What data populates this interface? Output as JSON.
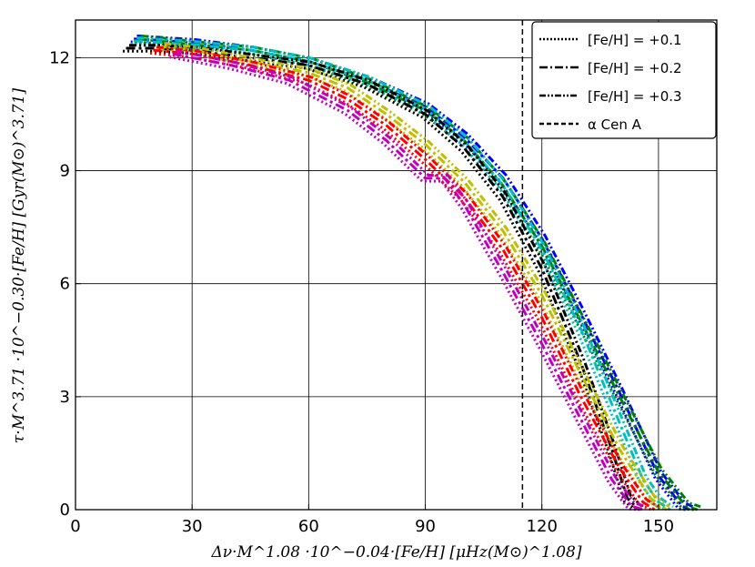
{
  "chart_data": {
    "type": "line",
    "xlabel": "Δν·M^1.08 ·10^−0.04·[Fe/H] [μHz(M⊙)^1.08]",
    "ylabel": "τ·M^3.71 ·10^−0.30·[Fe/H] [Gyr(M⊙)^3.71]",
    "xlim": [
      0,
      165
    ],
    "ylim": [
      0,
      13
    ],
    "xticks": [
      "0",
      "30",
      "60",
      "90",
      "120",
      "150"
    ],
    "yticks": [
      "0",
      "3",
      "6",
      "9",
      "12"
    ],
    "grid": true,
    "legend_position": "top-right",
    "legend": [
      {
        "label": "[Fe/H] = +0.1",
        "style": "dotted"
      },
      {
        "label": "[Fe/H] = +0.2",
        "style": "dashdot"
      },
      {
        "label": "[Fe/H] = +0.3",
        "style": "dashdotdot"
      },
      {
        "label": "α Cen A",
        "style": "dashed"
      }
    ],
    "reference_line": {
      "x": 115
    },
    "series": [
      {
        "color": "#0000ff",
        "x": [
          15,
          30,
          45,
          60,
          75,
          90,
          100,
          110,
          120,
          130,
          140,
          150,
          156,
          158
        ],
        "y": [
          12.5,
          12.4,
          12.2,
          11.9,
          11.4,
          10.7,
          9.9,
          8.8,
          7.2,
          5.2,
          3.1,
          0.9,
          0.1,
          0
        ]
      },
      {
        "color": "#008000",
        "x": [
          16,
          30,
          45,
          60,
          75,
          90,
          100,
          110,
          120,
          130,
          140,
          150,
          157,
          160
        ],
        "y": [
          12.5,
          12.35,
          12.2,
          11.9,
          11.35,
          10.6,
          9.8,
          8.6,
          7.0,
          5.0,
          3.0,
          1.0,
          0.1,
          0
        ]
      },
      {
        "color": "#00bfbf",
        "x": [
          15,
          30,
          45,
          60,
          75,
          90,
          100,
          110,
          120,
          130,
          140,
          146,
          150,
          153
        ],
        "y": [
          12.45,
          12.35,
          12.2,
          11.9,
          11.4,
          10.65,
          9.8,
          8.6,
          6.9,
          4.8,
          2.3,
          0.8,
          0.2,
          0
        ]
      },
      {
        "color": "#000000",
        "x": [
          13,
          20,
          30,
          45,
          60,
          75,
          90,
          100,
          110,
          120,
          130,
          138,
          142,
          145
        ],
        "y": [
          12.25,
          12.25,
          12.2,
          12.0,
          11.8,
          11.3,
          10.5,
          9.6,
          8.3,
          6.4,
          3.9,
          1.6,
          0.3,
          0
        ]
      },
      {
        "color": "#bfbf00",
        "x": [
          22,
          30,
          45,
          60,
          70,
          80,
          90,
          100,
          110,
          120,
          130,
          140,
          148,
          152
        ],
        "y": [
          12.3,
          12.2,
          11.9,
          11.6,
          11.2,
          10.5,
          9.7,
          8.7,
          7.4,
          5.7,
          3.6,
          1.6,
          0.3,
          0
        ]
      },
      {
        "color": "#ff0000",
        "x": [
          20,
          30,
          45,
          60,
          70,
          80,
          90,
          100,
          110,
          120,
          130,
          140,
          146,
          149
        ],
        "y": [
          12.2,
          12.1,
          11.8,
          11.4,
          10.9,
          10.2,
          9.3,
          8.3,
          6.9,
          5.1,
          3.0,
          1.1,
          0.2,
          0
        ]
      },
      {
        "color": "#bf00bf",
        "x": [
          25,
          40,
          55,
          70,
          80,
          90,
          95,
          100,
          110,
          120,
          130,
          138,
          143,
          146
        ],
        "y": [
          12.1,
          11.8,
          11.4,
          10.6,
          9.8,
          8.8,
          8.8,
          8.1,
          6.3,
          4.4,
          2.4,
          0.8,
          0.1,
          0
        ]
      }
    ]
  }
}
